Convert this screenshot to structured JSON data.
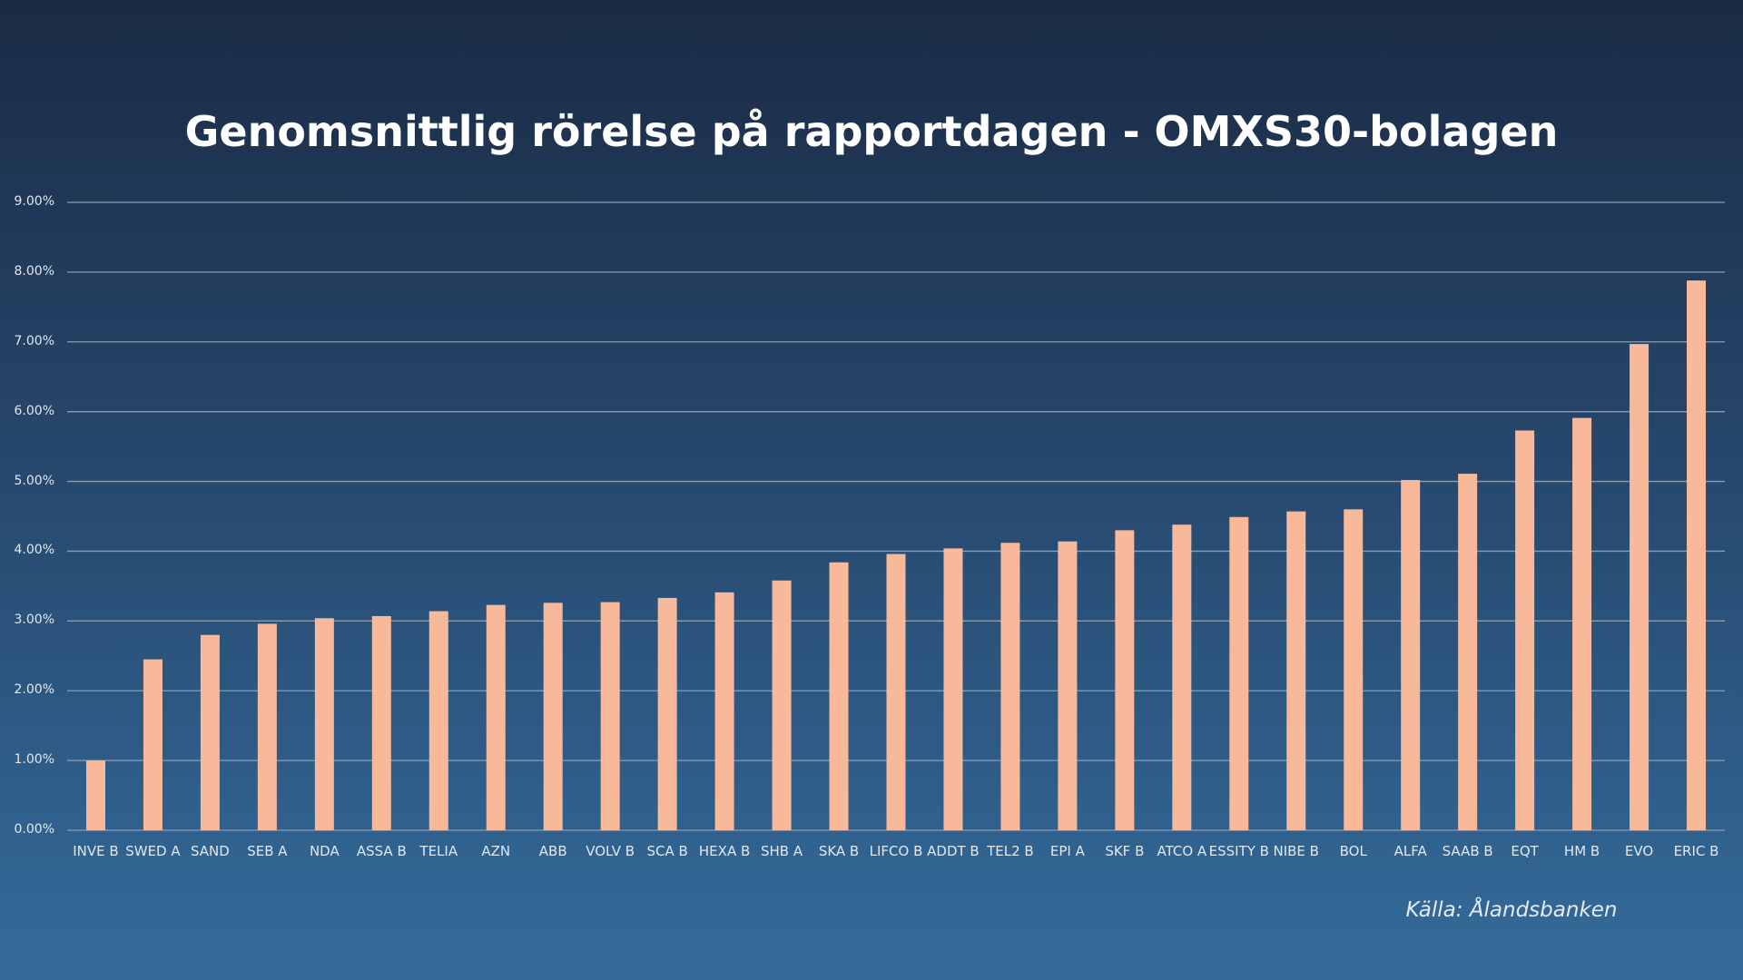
{
  "chart_data": {
    "type": "bar",
    "title": "Genomsnittlig rörelse på rapportdagen - OMXS30-bolagen",
    "source": "Källa: Ålandsbanken",
    "categories": [
      "INVE B",
      "SWED A",
      "SAND",
      "SEB A",
      "NDA",
      "ASSA B",
      "TELIA",
      "AZN",
      "ABB",
      "VOLV B",
      "SCA B",
      "HEXA B",
      "SHB A",
      "SKA B",
      "LIFCO B",
      "ADDT B",
      "TEL2 B",
      "EPI A",
      "SKF B",
      "ATCO A",
      "ESSITY B",
      "NIBE B",
      "BOL",
      "ALFA",
      "SAAB B",
      "EQT",
      "HM B",
      "EVO",
      "ERIC B"
    ],
    "values": [
      1.0,
      2.45,
      2.8,
      2.96,
      3.04,
      3.07,
      3.14,
      3.23,
      3.26,
      3.27,
      3.33,
      3.41,
      3.58,
      3.84,
      3.96,
      4.04,
      4.12,
      4.14,
      4.3,
      4.38,
      4.49,
      4.57,
      4.6,
      5.02,
      5.11,
      5.73,
      5.91,
      6.97,
      7.88
    ],
    "color": "#f8b99a",
    "ylim": [
      0,
      9
    ],
    "yticks": [
      {
        "value": 0,
        "label": "0.00%"
      },
      {
        "value": 1,
        "label": "1.00%"
      },
      {
        "value": 2,
        "label": "2.00%"
      },
      {
        "value": 3,
        "label": "3.00%"
      },
      {
        "value": 4,
        "label": "4.00%"
      },
      {
        "value": 5,
        "label": "5.00%"
      },
      {
        "value": 6,
        "label": "6.00%"
      },
      {
        "value": 7,
        "label": "7.00%"
      },
      {
        "value": 8,
        "label": "8.00%"
      },
      {
        "value": 9,
        "label": "9.00%"
      }
    ],
    "grid": true
  }
}
